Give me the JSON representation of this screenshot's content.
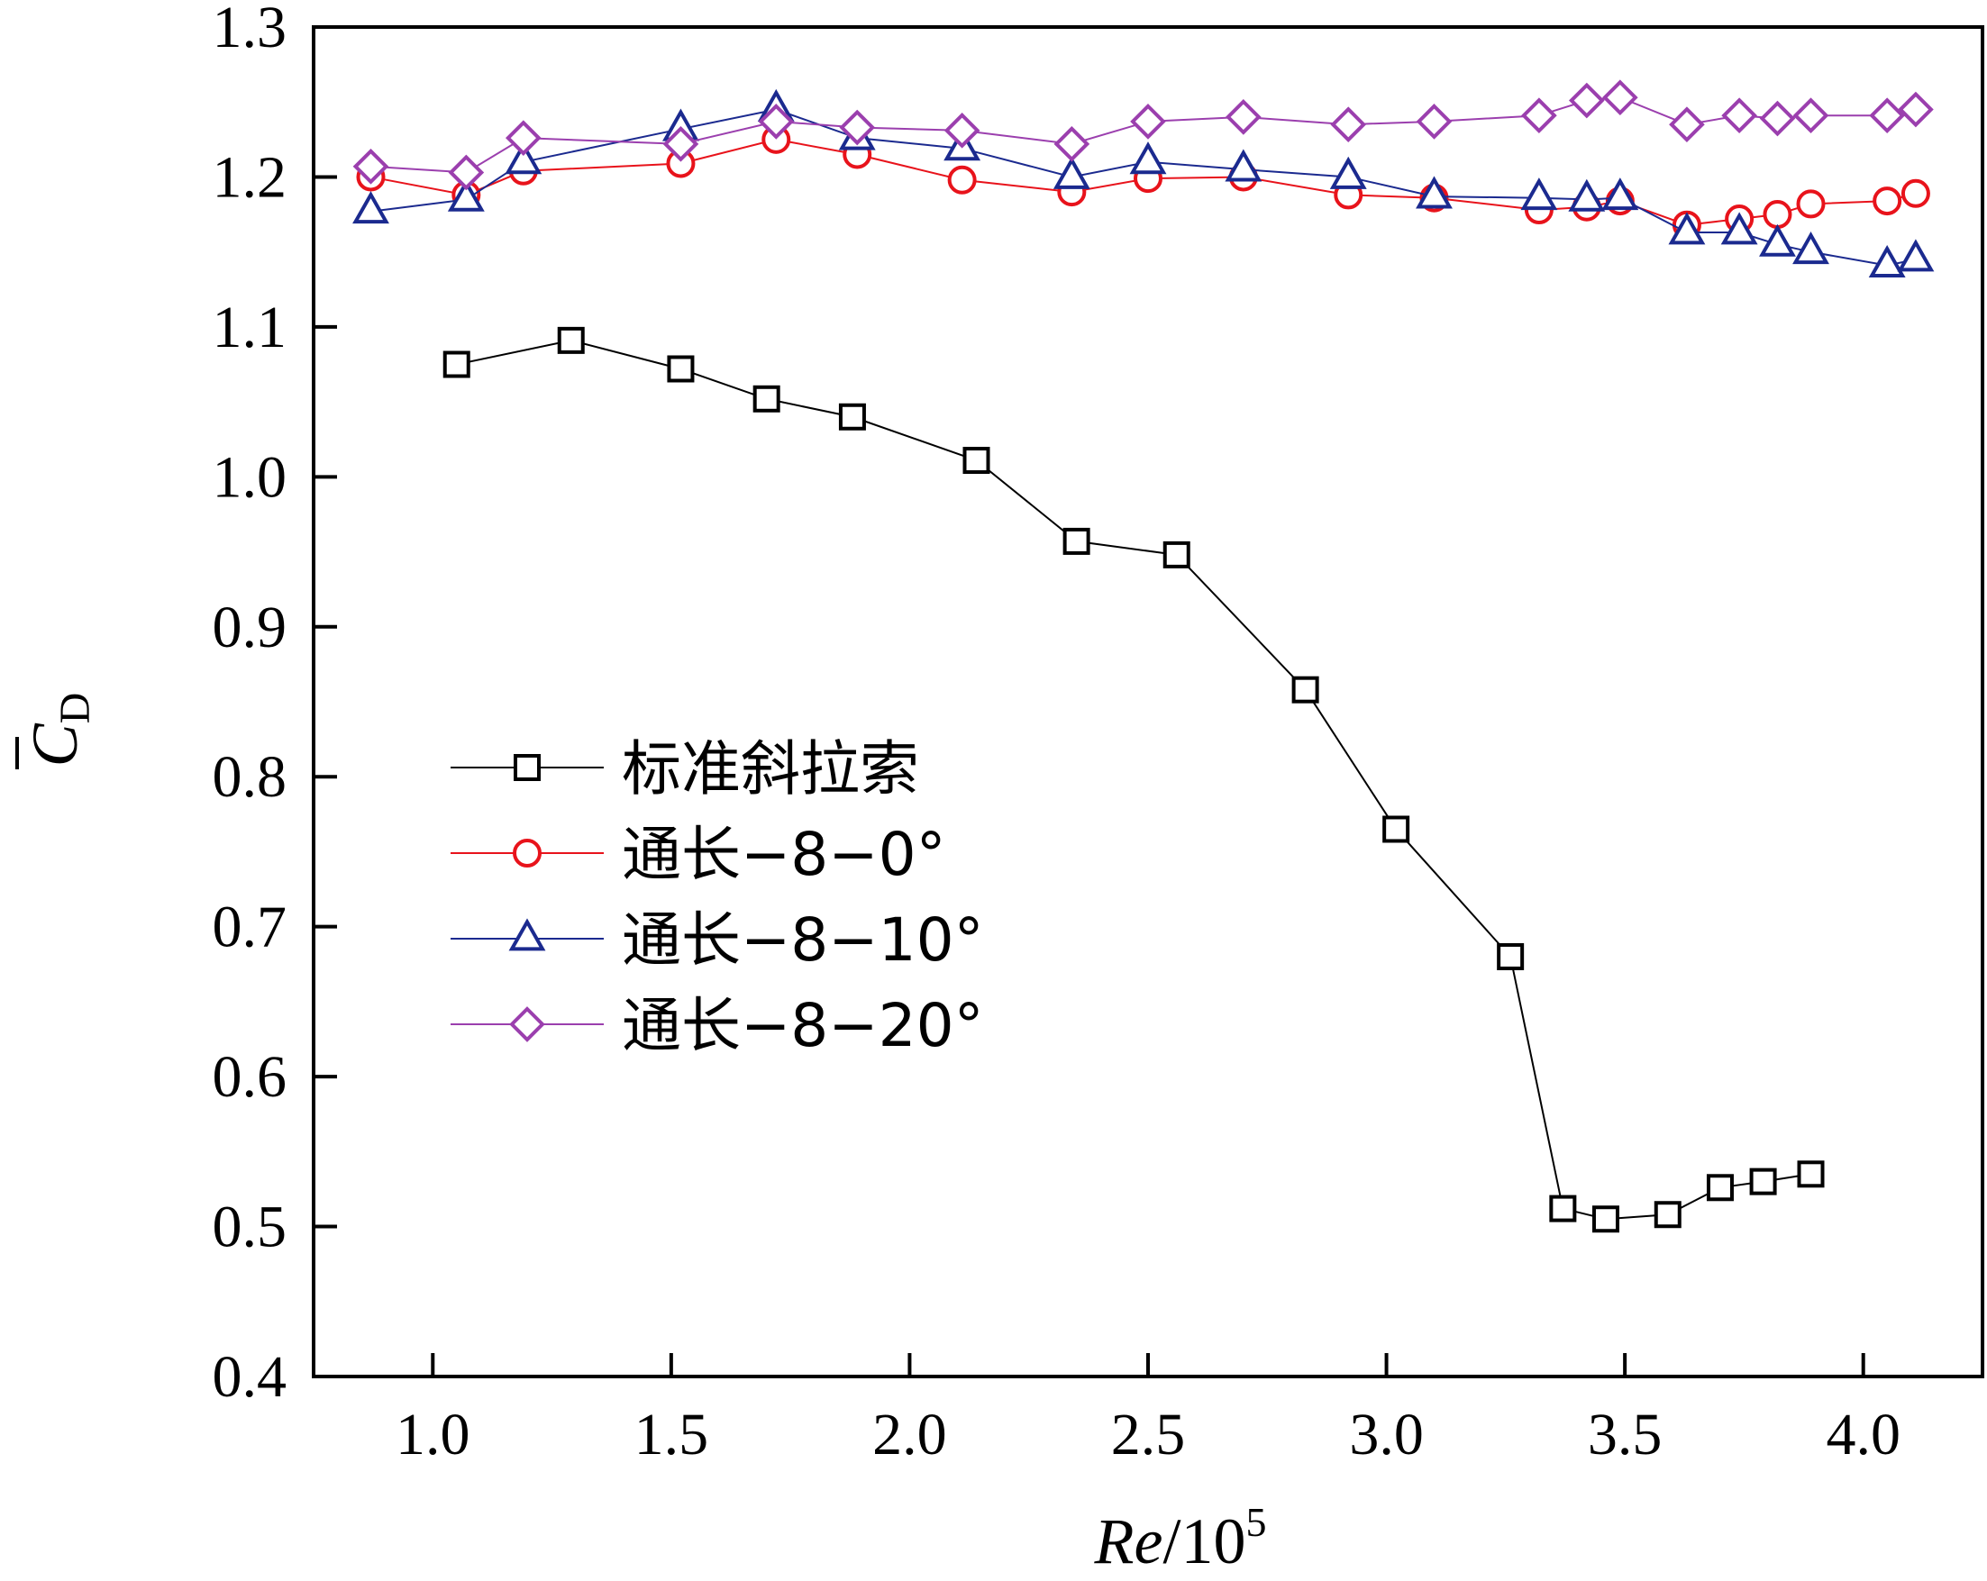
{
  "chart_data": {
    "type": "line",
    "title": "",
    "xlabel": {
      "italic": "Re",
      "base": "/10",
      "sup": "5"
    },
    "ylabel": {
      "main": "C",
      "sub": "D",
      "bar": true
    },
    "xlim": [
      0.75,
      4.25
    ],
    "ylim": [
      0.4,
      1.3
    ],
    "xticks": [
      1.0,
      1.5,
      2.0,
      2.5,
      3.0,
      3.5,
      4.0
    ],
    "xtick_labels": [
      "1.0",
      "1.5",
      "2.0",
      "2.5",
      "3.0",
      "3.5",
      "4.0"
    ],
    "yticks": [
      0.4,
      0.5,
      0.6,
      0.7,
      0.8,
      0.9,
      1.0,
      1.1,
      1.2,
      1.3
    ],
    "ytick_labels": [
      "0.4",
      "0.5",
      "0.6",
      "0.7",
      "0.8",
      "0.9",
      "1.0",
      "1.1",
      "1.2",
      "1.3"
    ],
    "grid": false,
    "legend_position": "center-left",
    "series": [
      {
        "name": "标准斜拉索",
        "color": "#000000",
        "marker": "square",
        "x": [
          1.05,
          1.29,
          1.52,
          1.7,
          1.88,
          2.14,
          2.35,
          2.56,
          2.83,
          3.02,
          3.26,
          3.37,
          3.46,
          3.59,
          3.7,
          3.79,
          3.89
        ],
        "y": [
          1.075,
          1.091,
          1.072,
          1.052,
          1.04,
          1.011,
          0.957,
          0.948,
          0.858,
          0.765,
          0.68,
          0.512,
          0.505,
          0.508,
          0.526,
          0.53,
          0.535
        ]
      },
      {
        "name": "通长−8−0°",
        "color": "#e8131b",
        "marker": "circle",
        "x": [
          0.87,
          1.07,
          1.19,
          1.52,
          1.72,
          1.89,
          2.11,
          2.34,
          2.5,
          2.7,
          2.92,
          3.1,
          3.32,
          3.42,
          3.49,
          3.63,
          3.74,
          3.82,
          3.89,
          4.05,
          4.11
        ],
        "y": [
          1.2,
          1.188,
          1.204,
          1.209,
          1.225,
          1.215,
          1.198,
          1.19,
          1.199,
          1.2,
          1.188,
          1.186,
          1.178,
          1.18,
          1.184,
          1.168,
          1.172,
          1.175,
          1.182,
          1.184,
          1.189
        ]
      },
      {
        "name": "通长−8−10°",
        "color": "#1b2a8f",
        "marker": "triangle",
        "x": [
          0.87,
          1.07,
          1.19,
          1.52,
          1.72,
          1.89,
          2.11,
          2.34,
          2.5,
          2.7,
          2.92,
          3.1,
          3.32,
          3.42,
          3.49,
          3.63,
          3.74,
          3.82,
          3.89,
          4.05,
          4.11
        ],
        "y": [
          1.177,
          1.185,
          1.21,
          1.232,
          1.245,
          1.226,
          1.219,
          1.2,
          1.21,
          1.205,
          1.2,
          1.187,
          1.186,
          1.185,
          1.186,
          1.163,
          1.163,
          1.155,
          1.15,
          1.141,
          1.145
        ]
      },
      {
        "name": "通长−8−20°",
        "color": "#9b3fae",
        "marker": "diamond",
        "x": [
          0.87,
          1.07,
          1.19,
          1.52,
          1.72,
          1.89,
          2.11,
          2.34,
          2.5,
          2.7,
          2.92,
          3.1,
          3.32,
          3.42,
          3.49,
          3.63,
          3.74,
          3.82,
          3.89,
          4.05,
          4.11
        ],
        "y": [
          1.207,
          1.203,
          1.226,
          1.222,
          1.237,
          1.233,
          1.231,
          1.222,
          1.237,
          1.24,
          1.235,
          1.237,
          1.241,
          1.251,
          1.253,
          1.235,
          1.241,
          1.239,
          1.241,
          1.241,
          1.245
        ]
      }
    ]
  }
}
